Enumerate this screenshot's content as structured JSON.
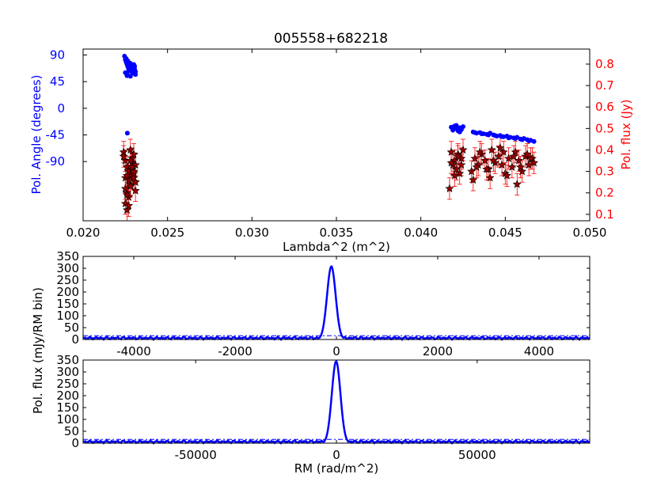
{
  "chart_data": [
    {
      "type": "scatter",
      "title": "005558+682218",
      "xlabel": "Lambda^2 (m^2)",
      "xlim": [
        0.02,
        0.05
      ],
      "xticks": [
        "0.020",
        "0.025",
        "0.030",
        "0.035",
        "0.040",
        "0.045",
        "0.050"
      ],
      "left_axis": {
        "label": "Pol. Angle (degrees)",
        "color": "#0000ff",
        "ylim": [
          -190,
          100
        ],
        "ticks": [
          "90",
          "45",
          "0",
          "-45",
          "-90"
        ]
      },
      "right_axis": {
        "label": "Pol. flux (Jy)",
        "color": "#ff0000",
        "ylim": [
          0.07,
          0.87
        ],
        "ticks": [
          "0.8",
          "0.7",
          "0.6",
          "0.5",
          "0.4",
          "0.3",
          "0.2",
          "0.1"
        ]
      },
      "series": [
        {
          "axis": "left",
          "color": "#0000ff",
          "marker": "circle",
          "x": [
            0.02245,
            0.0225,
            0.02255,
            0.0226,
            0.02265,
            0.0227,
            0.02275,
            0.0228,
            0.02285,
            0.0229,
            0.02295,
            0.023,
            0.02305,
            0.0231,
            0.0225,
            0.0226,
            0.0227,
            0.0228,
            0.0229,
            0.023,
            0.0231,
            0.02255,
            0.02265,
            0.02275,
            0.02285,
            0.02295,
            0.02305,
            0.0226,
            0.0228,
            0.02262,
            0.0418,
            0.0419,
            0.042,
            0.0421,
            0.0422,
            0.0423,
            0.0424,
            0.0425,
            0.0419,
            0.0421,
            0.0423,
            0.0431,
            0.0433,
            0.0435,
            0.0437,
            0.0439,
            0.0441,
            0.0443,
            0.0445,
            0.0447,
            0.0449,
            0.0451,
            0.0453,
            0.0455,
            0.0457,
            0.0459,
            0.0461,
            0.0463,
            0.0465,
            0.0467,
            0.0432,
            0.0436,
            0.044,
            0.0444,
            0.0448,
            0.0452,
            0.0456,
            0.046,
            0.0464
          ],
          "y": [
            88,
            82,
            78,
            74,
            70,
            66,
            72,
            76,
            68,
            64,
            70,
            74,
            66,
            62,
            60,
            58,
            63,
            67,
            61,
            59,
            57,
            84,
            80,
            73,
            69,
            65,
            71,
            55,
            54,
            -42,
            -32,
            -35,
            -30,
            -34,
            -38,
            -33,
            -36,
            -31,
            -37,
            -29,
            -40,
            -40,
            -42,
            -41,
            -43,
            -44,
            -42,
            -45,
            -47,
            -46,
            -48,
            -47,
            -49,
            -50,
            -49,
            -52,
            -51,
            -53,
            -54,
            -56,
            -41,
            -43,
            -45,
            -46,
            -48,
            -50,
            -51,
            -53,
            -55
          ]
        },
        {
          "axis": "right",
          "color": "#990000",
          "marker": "star",
          "error_color": "#ff0000",
          "x": [
            0.0224,
            0.0225,
            0.0226,
            0.0227,
            0.0228,
            0.0229,
            0.023,
            0.0231,
            0.0225,
            0.0226,
            0.0227,
            0.0228,
            0.0229,
            0.023,
            0.0231,
            0.0225,
            0.0226,
            0.0227,
            0.0228,
            0.0229,
            0.023,
            0.0231,
            0.0224,
            0.0226,
            0.0228,
            0.023,
            0.0225,
            0.0227,
            0.0229,
            0.0231,
            0.0226,
            0.0228,
            0.0417,
            0.0418,
            0.0419,
            0.042,
            0.0421,
            0.0422,
            0.0423,
            0.0424,
            0.0425,
            0.0418,
            0.042,
            0.0422,
            0.0424,
            0.043,
            0.0432,
            0.0434,
            0.0436,
            0.0438,
            0.044,
            0.0442,
            0.0444,
            0.0446,
            0.0448,
            0.045,
            0.0452,
            0.0454,
            0.0456,
            0.0458,
            0.046,
            0.0462,
            0.0464,
            0.0466,
            0.0431,
            0.0435,
            0.0439,
            0.0443,
            0.0447,
            0.0451,
            0.0455,
            0.0459,
            0.0463,
            0.0467,
            0.0433,
            0.0441,
            0.0449,
            0.0457,
            0.0465
          ],
          "y": [
            0.39,
            0.35,
            0.32,
            0.3,
            0.28,
            0.34,
            0.27,
            0.25,
            0.22,
            0.2,
            0.18,
            0.24,
            0.31,
            0.29,
            0.33,
            0.15,
            0.12,
            0.26,
            0.23,
            0.36,
            0.38,
            0.21,
            0.37,
            0.19,
            0.4,
            0.3,
            0.27,
            0.14,
            0.32,
            0.25,
            0.28,
            0.35,
            0.22,
            0.39,
            0.33,
            0.35,
            0.31,
            0.38,
            0.29,
            0.36,
            0.4,
            0.34,
            0.28,
            0.37,
            0.33,
            0.3,
            0.36,
            0.33,
            0.38,
            0.35,
            0.31,
            0.4,
            0.34,
            0.37,
            0.33,
            0.29,
            0.36,
            0.32,
            0.39,
            0.35,
            0.3,
            0.37,
            0.33,
            0.36,
            0.26,
            0.39,
            0.31,
            0.35,
            0.41,
            0.28,
            0.37,
            0.32,
            0.38,
            0.34,
            0.32,
            0.27,
            0.39,
            0.24,
            0.36
          ],
          "err": 0.05
        }
      ]
    },
    {
      "type": "line",
      "ylabel": "Pol. flux (mJy/RM bin)",
      "xlim": [
        -5000,
        5000
      ],
      "ylim": [
        0,
        350
      ],
      "xticks": [
        "-4000",
        "-2000",
        "0",
        "2000",
        "4000"
      ],
      "yticks": [
        "350",
        "300",
        "250",
        "200",
        "150",
        "100",
        "50",
        "0"
      ],
      "threshold": 16,
      "peak": {
        "x": -100,
        "y": 308
      },
      "color": "#0000ff"
    },
    {
      "type": "line",
      "xlabel": "RM (rad/m^2)",
      "xlim": [
        -90000,
        90000
      ],
      "ylim": [
        0,
        350
      ],
      "xticks": [
        "-50000",
        "0",
        "50000"
      ],
      "yticks": [
        "350",
        "300",
        "250",
        "200",
        "150",
        "100",
        "50",
        "0"
      ],
      "threshold": 16,
      "peak": {
        "x": -100,
        "y": 345
      },
      "color": "#0000ff"
    }
  ]
}
